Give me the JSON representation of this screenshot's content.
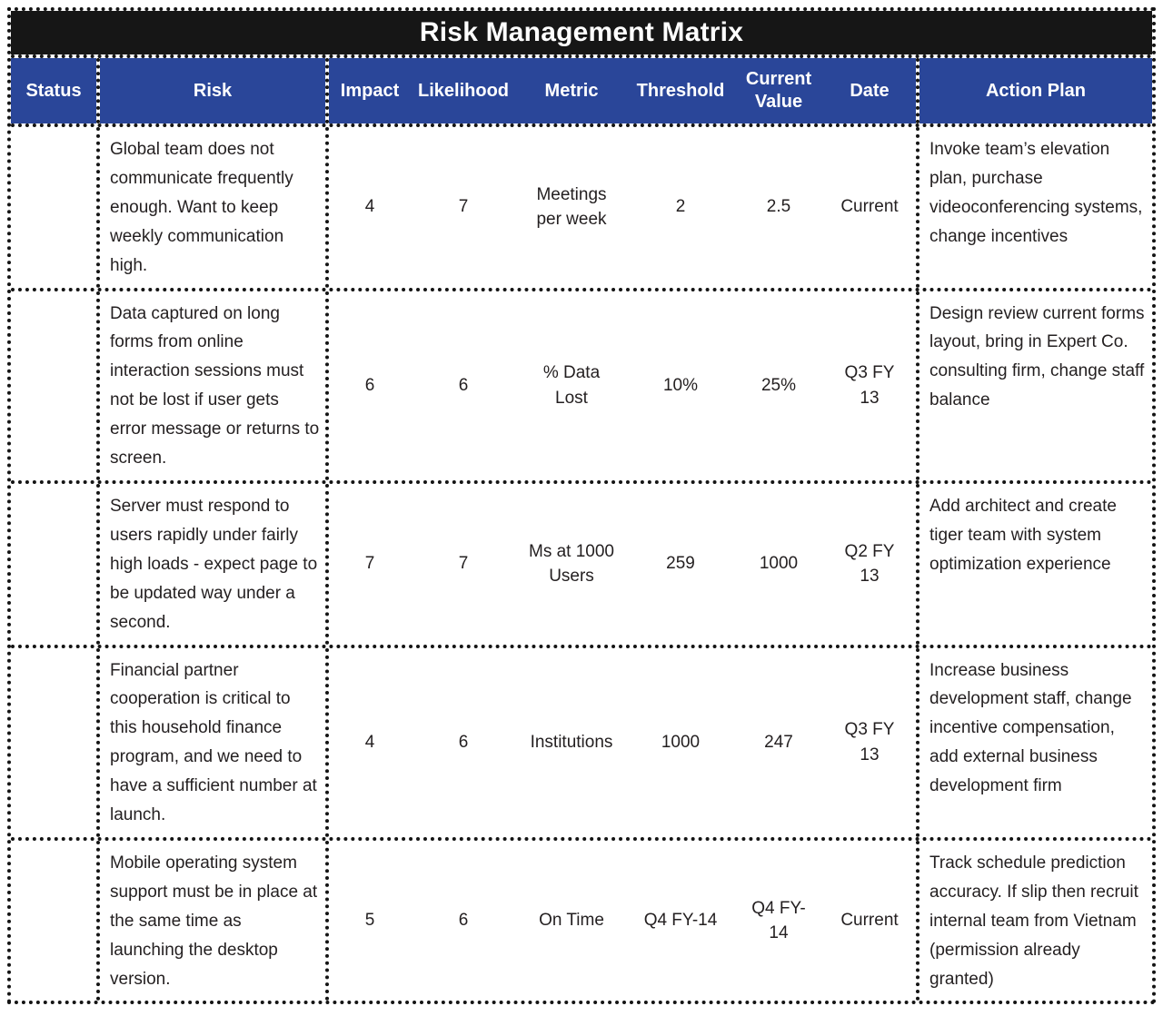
{
  "title": "Risk Management Matrix",
  "colors": {
    "title_bg": "#161616",
    "header_bg": "#2a4699",
    "border_color": "#141414",
    "text_color": "#231f20"
  },
  "columns": [
    {
      "label": "Status"
    },
    {
      "label": "Risk"
    },
    {
      "label": "Impact"
    },
    {
      "label": "Likelihood"
    },
    {
      "label": "Metric"
    },
    {
      "label": "Threshold"
    },
    {
      "label": "Current Value"
    },
    {
      "label": "Date"
    },
    {
      "label": "Action Plan"
    }
  ],
  "rows": [
    {
      "status": "",
      "risk": "Global team does not communicate frequently enough. Want to keep weekly communication high.",
      "impact": "4",
      "likelihood": "7",
      "metric": "Meetings per week",
      "threshold": "2",
      "current_value": "2.5",
      "date": "Current",
      "action_plan": "Invoke team’s elevation plan, purchase videoconferencing systems, change incentives"
    },
    {
      "status": "",
      "risk": "Data captured on long forms from online interaction sessions must not be lost if user gets error message or returns to screen.",
      "impact": "6",
      "likelihood": "6",
      "metric": "% Data Lost",
      "threshold": "10%",
      "current_value": "25%",
      "date": "Q3 FY 13",
      "action_plan": "Design review current forms layout, bring in Expert Co. consulting firm, change staff balance"
    },
    {
      "status": "",
      "risk": "Server must respond to users rapidly under fairly high loads - expect page to be updated way under a second.",
      "impact": "7",
      "likelihood": "7",
      "metric": "Ms at 1000 Users",
      "threshold": "259",
      "current_value": "1000",
      "date": "Q2 FY 13",
      "action_plan": "Add architect and create tiger team with system optimization experience"
    },
    {
      "status": "",
      "risk": "Financial partner cooperation is critical to this household finance program, and we need to have a sufficient number at launch.",
      "impact": "4",
      "likelihood": "6",
      "metric": "Institutions",
      "threshold": "1000",
      "current_value": "247",
      "date": "Q3 FY 13",
      "action_plan": "Increase business development staff, change incentive compensation, add external business development firm"
    },
    {
      "status": "",
      "risk": "Mobile operating system support must be in place at the same time as launching the desktop version.",
      "impact": "5",
      "likelihood": "6",
      "metric": "On Time",
      "threshold": "Q4 FY-14",
      "current_value": "Q4 FY-14",
      "date": "Current",
      "action_plan": "Track schedule prediction accuracy. If slip then recruit internal team from Vietnam (permission already granted)"
    }
  ]
}
